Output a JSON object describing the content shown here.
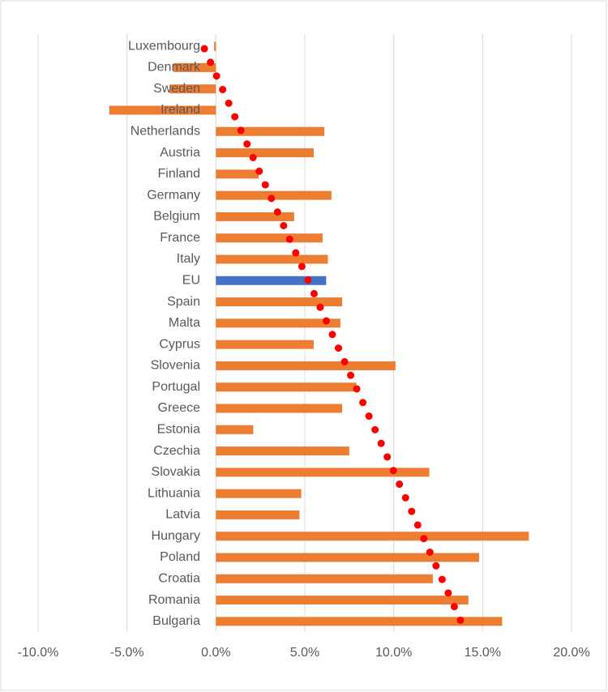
{
  "chart_data": {
    "type": "bar",
    "orientation": "horizontal",
    "categories": [
      "Luxembourg",
      "Denmark",
      "Sweden",
      "Ireland",
      "Netherlands",
      "Austria",
      "Finland",
      "Germany",
      "Belgium",
      "France",
      "Italy",
      "EU",
      "Spain",
      "Malta",
      "Cyprus",
      "Slovenia",
      "Portugal",
      "Greece",
      "Estonia",
      "Czechia",
      "Slovakia",
      "Lithuania",
      "Latvia",
      "Hungary",
      "Poland",
      "Croatia",
      "Romania",
      "Bulgaria"
    ],
    "values": [
      -0.1,
      -2.4,
      -2.6,
      -6.0,
      6.1,
      5.5,
      2.4,
      6.5,
      4.4,
      6.0,
      6.3,
      6.2,
      7.1,
      7.0,
      5.5,
      10.1,
      7.9,
      7.1,
      2.1,
      7.5,
      12.0,
      4.8,
      4.7,
      17.6,
      14.8,
      12.2,
      14.2,
      16.1
    ],
    "colors": [
      "#ed7d31",
      "#ed7d31",
      "#ed7d31",
      "#ed7d31",
      "#ed7d31",
      "#ed7d31",
      "#ed7d31",
      "#ed7d31",
      "#ed7d31",
      "#ed7d31",
      "#ed7d31",
      "#4472c4",
      "#ed7d31",
      "#ed7d31",
      "#ed7d31",
      "#ed7d31",
      "#ed7d31",
      "#ed7d31",
      "#ed7d31",
      "#ed7d31",
      "#ed7d31",
      "#ed7d31",
      "#ed7d31",
      "#ed7d31",
      "#ed7d31",
      "#ed7d31",
      "#ed7d31",
      "#ed7d31"
    ],
    "trendline": {
      "start": -0.65,
      "end": 13.8,
      "color": "#ff0000"
    },
    "xlim": [
      -10,
      20
    ],
    "xticks": [
      {
        "value": -10,
        "label": "-10.0%"
      },
      {
        "value": -5,
        "label": "-5.0%"
      },
      {
        "value": 0,
        "label": "0.0%"
      },
      {
        "value": 5,
        "label": "5.0%"
      },
      {
        "value": 10,
        "label": "10.0%"
      },
      {
        "value": 15,
        "label": "15.0%"
      },
      {
        "value": 20,
        "label": "20.0%"
      }
    ],
    "grid": true
  }
}
